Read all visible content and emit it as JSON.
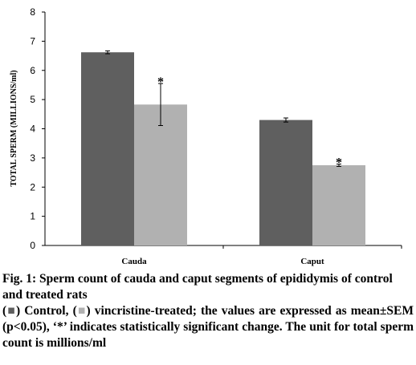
{
  "chart_data": {
    "type": "bar",
    "categories": [
      "Cauda",
      "Caput"
    ],
    "series": [
      {
        "values": [
          6.62,
          4.3
        ],
        "errors": [
          0.05,
          0.07
        ],
        "color": "#5f5f5f"
      },
      {
        "values": [
          4.83,
          2.75
        ],
        "errors": [
          0.72,
          0.04
        ],
        "color": "#b1b1b1",
        "markers": [
          "*",
          "*"
        ]
      }
    ],
    "ylabel": "TOTAL SPERM (MILLIONS/ml)",
    "ylim": [
      0,
      8
    ],
    "yticks": [
      "0",
      "1",
      "2",
      "3",
      "4",
      "5",
      "6",
      "7",
      "8"
    ],
    "grid": false,
    "legend": "none"
  },
  "caption": {
    "title": "Fig. 1: Sperm count of cauda and caput segments of epididymis of control and treated rats",
    "legend_swatch_control": "■",
    "legend_control_text": " Control, ",
    "legend_swatch_treated": "■",
    "legend_treated_text": " vincristine-treated; the values are expressed as mean±SEM (p<0.05), ‘*’ indicates statistically significant change. The unit for total sperm count is millions/ml",
    "open_paren": "(",
    "close_paren": ")"
  }
}
